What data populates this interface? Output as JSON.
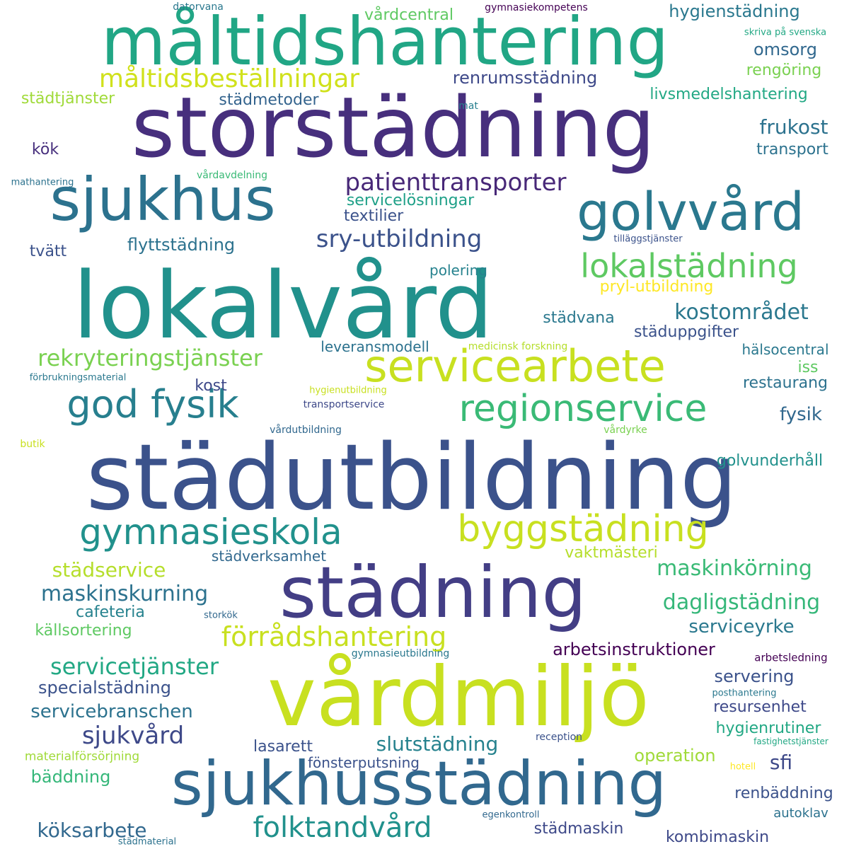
{
  "colors": {
    "background": "#ffffff",
    "deep_purple": "#472f7d",
    "indigo": "#3b518b",
    "blue": "#355f8d",
    "slate_blue": "#2c728e",
    "teal": "#21918c",
    "sea_green": "#1fa088",
    "green": "#3aba76",
    "light_green": "#75d054",
    "lime": "#addc30",
    "yellow_green": "#c8e020"
  },
  "words": [
    {
      "text": "måltidshantering",
      "color": "#21a685"
    },
    {
      "text": "storstädning",
      "color": "#472f7d"
    },
    {
      "text": "sjukhus",
      "color": "#2c728e"
    },
    {
      "text": "golvvård",
      "color": "#2a788e"
    },
    {
      "text": "lokalvård",
      "color": "#21918c"
    },
    {
      "text": "städutbildning",
      "color": "#3b528b"
    },
    {
      "text": "vårdmiljö",
      "color": "#c8e020"
    },
    {
      "text": "städning",
      "color": "#433e85"
    },
    {
      "text": "sjukhusstädning",
      "color": "#31688e"
    },
    {
      "text": "servicearbete",
      "color": "#c8e020"
    },
    {
      "text": "regionservice",
      "color": "#3aba76"
    },
    {
      "text": "god fysik",
      "color": "#277f8e"
    },
    {
      "text": "byggstädning",
      "color": "#c8e020"
    },
    {
      "text": "gymnasieskola",
      "color": "#21918c"
    },
    {
      "text": "lokalstädning",
      "color": "#5ec962"
    },
    {
      "text": "måltidsbeställningar",
      "color": "#d0e11c"
    },
    {
      "text": "förrådshantering",
      "color": "#c8e020"
    },
    {
      "text": "folktandvård",
      "color": "#21918c"
    },
    {
      "text": "sry-utbildning",
      "color": "#3b528b"
    },
    {
      "text": "patienttransporter",
      "color": "#482878"
    },
    {
      "text": "rekryteringstjänster",
      "color": "#7ad151"
    },
    {
      "text": "servicetjänster",
      "color": "#22a884"
    },
    {
      "text": "kostområdet",
      "color": "#2a788e"
    },
    {
      "text": "dagligstädning",
      "color": "#35b779"
    },
    {
      "text": "maskinskurning",
      "color": "#2c728e"
    },
    {
      "text": "maskinkörning",
      "color": "#3aba76"
    },
    {
      "text": "städservice",
      "color": "#b5de2b"
    },
    {
      "text": "sjukvård",
      "color": "#3e4989"
    },
    {
      "text": "köksarbete",
      "color": "#31688e"
    },
    {
      "text": "slutstädning",
      "color": "#26828e"
    },
    {
      "text": "servicebranschen",
      "color": "#2c728e"
    },
    {
      "text": "serviceyrke",
      "color": "#2a788e"
    },
    {
      "text": "specialstädning",
      "color": "#3b528b"
    },
    {
      "text": "arbetsinstruktioner",
      "color": "#440154"
    },
    {
      "text": "frukost",
      "color": "#2c728e"
    },
    {
      "text": "hygienstädning",
      "color": "#2a788e"
    },
    {
      "text": "omsorg",
      "color": "#31688e"
    },
    {
      "text": "vårdcentral",
      "color": "#5ec962"
    },
    {
      "text": "renrumsstädning",
      "color": "#3e4989"
    },
    {
      "text": "livsmedelshantering",
      "color": "#22a884"
    },
    {
      "text": "rengöring",
      "color": "#7ad151"
    },
    {
      "text": "städtjänster",
      "color": "#a0da39"
    },
    {
      "text": "städmetoder",
      "color": "#33638d"
    },
    {
      "text": "kök",
      "color": "#472f7d"
    },
    {
      "text": "transport",
      "color": "#2c728e"
    },
    {
      "text": "servicelösningar",
      "color": "#1fa088"
    },
    {
      "text": "textilier",
      "color": "#3b528b"
    },
    {
      "text": "flyttstädning",
      "color": "#2c728e"
    },
    {
      "text": "tvätt",
      "color": "#3b528b"
    },
    {
      "text": "polering",
      "color": "#26828e"
    },
    {
      "text": "pryl-utbildning",
      "color": "#fde725"
    },
    {
      "text": "städvana",
      "color": "#2a788e"
    },
    {
      "text": "städuppgifter",
      "color": "#3b528b"
    },
    {
      "text": "leveransmodell",
      "color": "#2c728e"
    },
    {
      "text": "hälsocentral",
      "color": "#2a788e"
    },
    {
      "text": "iss",
      "color": "#5ec962"
    },
    {
      "text": "restaurang",
      "color": "#2c728e"
    },
    {
      "text": "kost",
      "color": "#3e4989"
    },
    {
      "text": "fysik",
      "color": "#31688e"
    },
    {
      "text": "golvunderhåll",
      "color": "#21918c"
    },
    {
      "text": "vaktmästeri",
      "color": "#b5de2b"
    },
    {
      "text": "städverksamhet",
      "color": "#31688e"
    },
    {
      "text": "cafeteria",
      "color": "#26828e"
    },
    {
      "text": "källsortering",
      "color": "#5ec962"
    },
    {
      "text": "servering",
      "color": "#3b528b"
    },
    {
      "text": "resursenhet",
      "color": "#3e4989"
    },
    {
      "text": "hygienrutiner",
      "color": "#22a884"
    },
    {
      "text": "lasarett",
      "color": "#3b528b"
    },
    {
      "text": "operation",
      "color": "#a0da39"
    },
    {
      "text": "sfi",
      "color": "#3e4989"
    },
    {
      "text": "fönsterputsning",
      "color": "#3b528b"
    },
    {
      "text": "bäddning",
      "color": "#35b779"
    },
    {
      "text": "renbäddning",
      "color": "#3b528b"
    },
    {
      "text": "autoklav",
      "color": "#2c728e"
    },
    {
      "text": "städmaskin",
      "color": "#3e4989"
    },
    {
      "text": "kombimaskin",
      "color": "#3e4989"
    },
    {
      "text": "materialförsörjning",
      "color": "#a0da39"
    },
    {
      "text": "datorvana",
      "color": "#2a788e"
    },
    {
      "text": "gymnasiekompetens",
      "color": "#440154"
    },
    {
      "text": "skriva på svenska",
      "color": "#22a884"
    },
    {
      "text": "mat",
      "color": "#277f8e"
    },
    {
      "text": "mathantering",
      "color": "#2c728e"
    },
    {
      "text": "vårdavdelning",
      "color": "#3aba76"
    },
    {
      "text": "tilläggstjänster",
      "color": "#3b528b"
    },
    {
      "text": "medicinsk forskning",
      "color": "#b5de2b"
    },
    {
      "text": "förbrukningsmaterial",
      "color": "#2a788e"
    },
    {
      "text": "hygienutbildning",
      "color": "#c8e020"
    },
    {
      "text": "transportservice",
      "color": "#3e4989"
    },
    {
      "text": "vårdutbildning",
      "color": "#31688e"
    },
    {
      "text": "vårdyrke",
      "color": "#7ad151"
    },
    {
      "text": "butik",
      "color": "#c8e020"
    },
    {
      "text": "storkök",
      "color": "#31688e"
    },
    {
      "text": "gymnasieutbildning",
      "color": "#2a788e"
    },
    {
      "text": "arbetsledning",
      "color": "#440154"
    },
    {
      "text": "posthantering",
      "color": "#2a788e"
    },
    {
      "text": "reception",
      "color": "#3b528b"
    },
    {
      "text": "fastighetstjänster",
      "color": "#22a884"
    },
    {
      "text": "hotell",
      "color": "#fde725"
    },
    {
      "text": "egenkontroll",
      "color": "#31688e"
    },
    {
      "text": "städmaterial",
      "color": "#2c728e"
    }
  ]
}
